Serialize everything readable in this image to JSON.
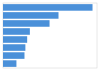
{
  "chart_data": {
    "type": "bar",
    "orientation": "horizontal",
    "values": [
      100,
      62,
      52,
      30,
      27,
      25,
      24,
      15
    ],
    "color": "#4a90d9",
    "xlim": [
      0,
      105
    ],
    "tick_labels": false
  }
}
